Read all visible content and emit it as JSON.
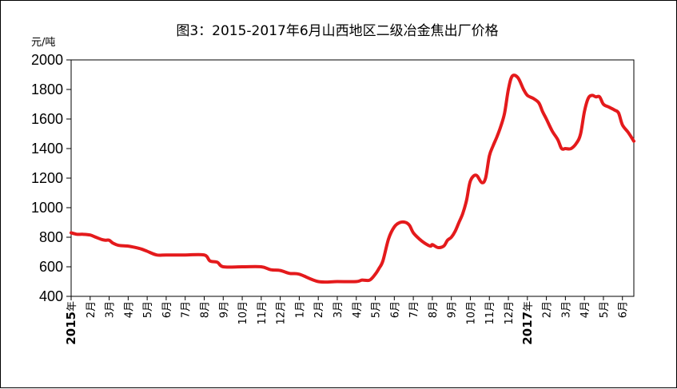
{
  "chart_data": {
    "type": "line",
    "title": "图3：2015-2017年6月山西地区二级冶金焦出厂价格",
    "ylabel": "元/吨",
    "xlabel": "",
    "ylim": [
      400,
      2000
    ],
    "yticks": [
      400,
      600,
      800,
      1000,
      1200,
      1400,
      1600,
      1800,
      2000
    ],
    "grid": false,
    "line_color": "#E41A1C",
    "x_tick_labels": [
      {
        "prefix": "2015",
        "label": "年"
      },
      {
        "label": "2月"
      },
      {
        "label": "3月"
      },
      {
        "label": "4月"
      },
      {
        "label": "5月"
      },
      {
        "label": "6月"
      },
      {
        "label": "7月"
      },
      {
        "label": "8月"
      },
      {
        "label": "9月"
      },
      {
        "label": "10月"
      },
      {
        "label": "11月"
      },
      {
        "label": "12月"
      },
      {
        "label": "1月"
      },
      {
        "label": "2月"
      },
      {
        "label": "3月"
      },
      {
        "label": "4月"
      },
      {
        "label": "5月"
      },
      {
        "label": "6月"
      },
      {
        "label": "7月"
      },
      {
        "label": "8月"
      },
      {
        "label": "9月"
      },
      {
        "label": "10月"
      },
      {
        "label": "11月"
      },
      {
        "label": "12月"
      },
      {
        "prefix": "2017",
        "label": "年"
      },
      {
        "label": "2月"
      },
      {
        "label": "3月"
      },
      {
        "label": "4月"
      },
      {
        "label": "5月"
      },
      {
        "label": "6月"
      }
    ],
    "series": [
      {
        "x": [
          0,
          0.3,
          0.6,
          1.0,
          1.3,
          1.6,
          1.8,
          2.0,
          2.2,
          2.5,
          3.0,
          3.4,
          3.7,
          4.0,
          4.5,
          5.0,
          6.0,
          7.0,
          7.3,
          7.7,
          8.0,
          9.0,
          10.0,
          10.5,
          11.0,
          11.5,
          12.0,
          13.0,
          14.0,
          15.0,
          15.3,
          15.7,
          16.0,
          16.2,
          16.4,
          16.7,
          17.0,
          17.3,
          17.6,
          17.8,
          18.0,
          18.3,
          18.6,
          18.9,
          19.0,
          19.3,
          19.6,
          19.8,
          20.0,
          20.2,
          20.4,
          20.6,
          20.8,
          21.0,
          21.3,
          21.6,
          21.8,
          22.0,
          22.2,
          22.4,
          22.6,
          22.8,
          23.0,
          23.2,
          23.5,
          23.8,
          24.0,
          24.3,
          24.6,
          24.8,
          25.0,
          25.3,
          25.6,
          25.8,
          26.0,
          26.3,
          26.6,
          26.8,
          27.0,
          27.2,
          27.4,
          27.6,
          27.8,
          28.0,
          28.3,
          28.6,
          28.8,
          29.0,
          29.3,
          29.6
        ],
        "values": [
          830,
          820,
          820,
          815,
          800,
          785,
          780,
          780,
          760,
          745,
          740,
          730,
          720,
          705,
          680,
          680,
          680,
          680,
          640,
          630,
          600,
          600,
          600,
          580,
          575,
          555,
          550,
          500,
          500,
          500,
          510,
          510,
          550,
          590,
          640,
          790,
          870,
          900,
          900,
          880,
          830,
          790,
          760,
          740,
          750,
          730,
          740,
          780,
          800,
          840,
          900,
          960,
          1050,
          1180,
          1220,
          1170,
          1200,
          1350,
          1420,
          1480,
          1550,
          1640,
          1800,
          1890,
          1880,
          1800,
          1760,
          1740,
          1710,
          1650,
          1600,
          1520,
          1460,
          1400,
          1400,
          1400,
          1440,
          1500,
          1650,
          1740,
          1760,
          1750,
          1750,
          1700,
          1680,
          1660,
          1640,
          1560,
          1510,
          1450
        ]
      }
    ]
  }
}
